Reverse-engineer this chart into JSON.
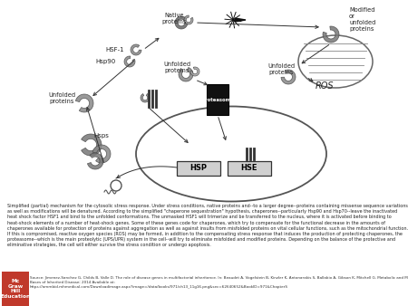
{
  "bg_color": "#ffffff",
  "caption_lines": "Simplified (partial) mechanism for the cytosolic stress response. Under stress conditions, native proteins and--to a larger degree--proteins containing missense sequence variations as well as modifications will be denatured. According to the simplified \"chaperone sequestration\" hypothesis, chaperones--particularly Hsp90 and Hsp70--leave the inactivated heat shock factor HSF1 and bind to the unfolded conformations. The unmasked HSF1 will trimerize and be transferred to the nucleus, where it is activated before binding to heat-shock elements of a number of heat-shock genes. Some of these genes code for chaperones, which try to compensate for the functional decrease in the amounts of chaperones available for protection of proteins against aggregation as well as against insults from misfolded proteins on vital cellular functions, such as the mitochondrial function. If this is compromised, reactive oxygen species (ROS) may be formed, in addition to the compensating stress response that induces the production of protecting chaperones, the proteasome--which is the main proteolytic (UPS/UPR) system in the cell--will try to eliminate misfolded and modified proteins. Depending on the balance of the protective and eliminative strategies, the cell will either survive the stress condition or undergo apoptosis.",
  "source_text": "Source: Jimenez-Sanchez G, Childs B, Valle D. The role of disease genes in multifactorial inheritance. In: Beaudet A, Vogelstein B, Kinzler K, Antonarakis S, Ballabio A, Gibson K, Mitchell G. Metabolic and Molecular\nBases of Inherited Disease; 2014 Available at:\nhttps://ommbid.mhmedical.com/Downloadimage.aspx?image=/data/books/971/ch13_11g16.png&sec=62640652&BookID=971&ChapterS",
  "publisher_color": "#c0392b",
  "publisher_label": "Mc\nGraw\nHill\nEducation"
}
